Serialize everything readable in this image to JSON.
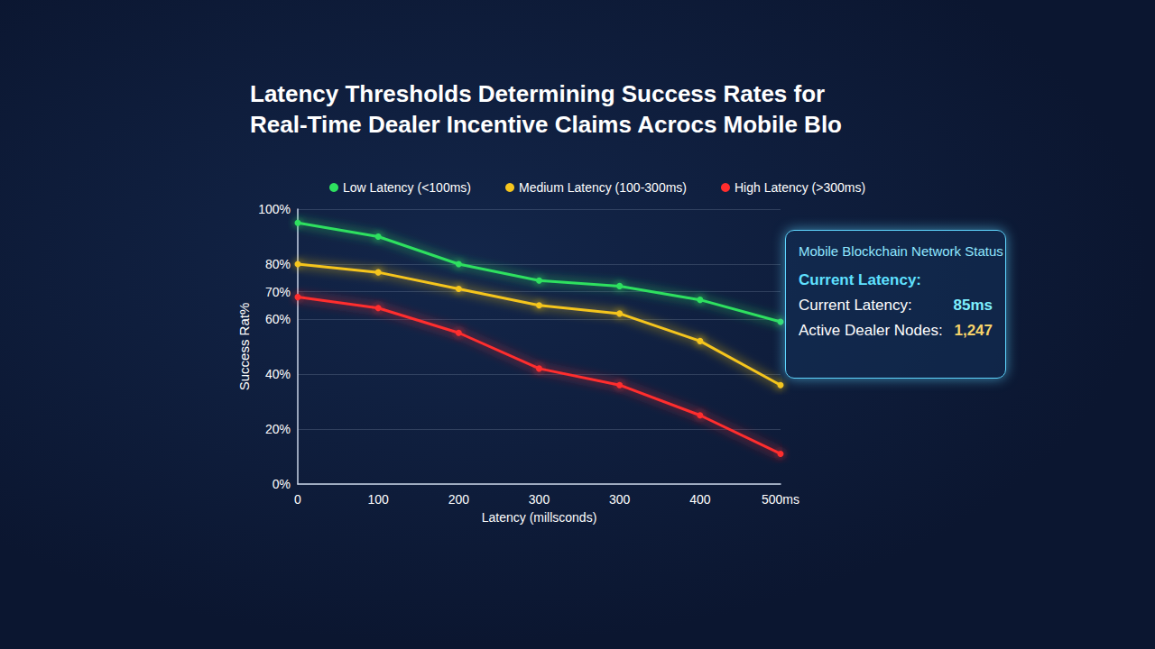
{
  "chart_data": {
    "type": "line",
    "title": [
      "Latency Thresholds Determining Success Rates for",
      "Real-Time Dealer Incentive Claims Acrocs Mobile Blo"
    ],
    "x_label": "Latency (millsconds)",
    "y_label": "Success Rat%",
    "categories": [
      "0",
      "100",
      "200",
      "300",
      "300",
      "400",
      "500ms"
    ],
    "series": [
      {
        "name": "Low Latency (<100ms)",
        "color": "#2ee05f",
        "values": [
          95,
          90,
          80,
          74,
          72,
          67,
          59
        ]
      },
      {
        "name": "Medium Latency (100-300ms)",
        "color": "#f5c51e",
        "values": [
          80,
          77,
          71,
          65,
          62,
          52,
          36
        ]
      },
      {
        "name": "High Latency (>300ms)",
        "color": "#ff2d2d",
        "values": [
          68,
          64,
          55,
          42,
          36,
          25,
          11
        ]
      }
    ],
    "ylim": [
      0,
      100
    ],
    "yticks": [
      {
        "value": 0,
        "label": "0%"
      },
      {
        "value": 20,
        "label": "20%"
      },
      {
        "value": 40,
        "label": "40%"
      },
      {
        "value": 60,
        "label": "60%"
      },
      {
        "value": 70,
        "label": "70%"
      },
      {
        "value": 80,
        "label": "80%"
      },
      {
        "value": 100,
        "label": "100%"
      }
    ],
    "grid": true,
    "legend": "top",
    "marker": "circle",
    "line_style": "solid",
    "annotation": {
      "title": "Mobile Blockchain Network Status",
      "rows": [
        {
          "label": "Current Latency:"
        },
        {
          "label": "Current Latency:",
          "value": "85ms"
        },
        {
          "label": "Active Dealer Nodes:",
          "value": "1,247"
        }
      ]
    }
  }
}
